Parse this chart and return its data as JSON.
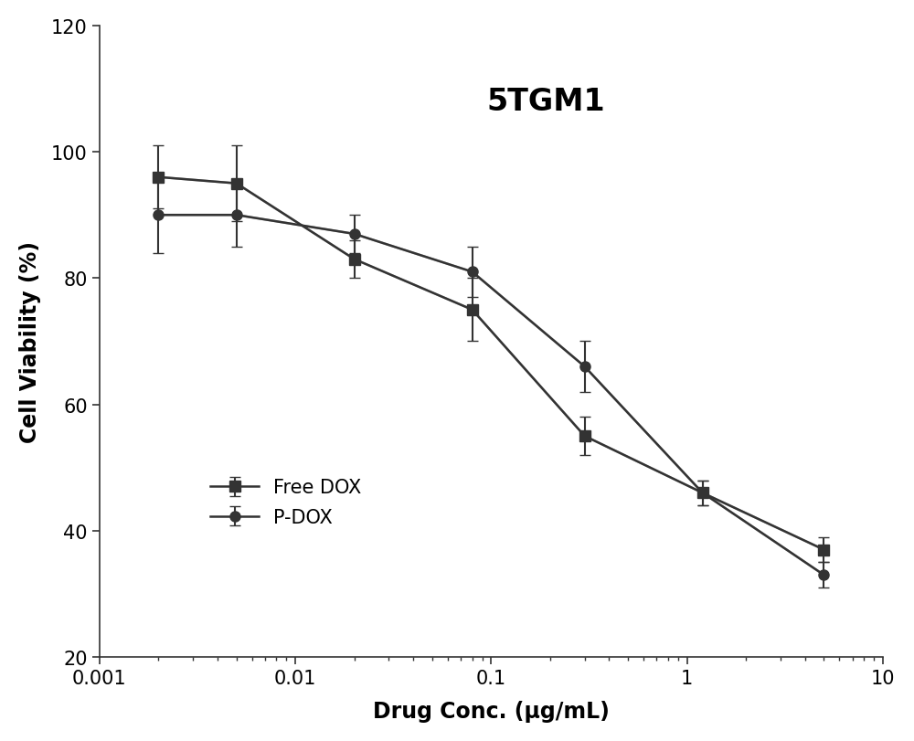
{
  "title": "5TGM1",
  "xlabel": "Drug Conc. (μg/mL)",
  "ylabel": "Cell Viability (%)",
  "xlim": [
    0.001,
    10
  ],
  "ylim": [
    20,
    120
  ],
  "yticks": [
    20,
    40,
    60,
    80,
    100,
    120
  ],
  "xticks": [
    0.001,
    0.01,
    0.1,
    1,
    10
  ],
  "free_dox_x": [
    0.002,
    0.005,
    0.02,
    0.08,
    0.3,
    1.2,
    5.0
  ],
  "free_dox_y": [
    96,
    95,
    83,
    75,
    55,
    46,
    37
  ],
  "free_dox_yerr": [
    5,
    6,
    3,
    5,
    3,
    2,
    2
  ],
  "pdox_x": [
    0.002,
    0.005,
    0.02,
    0.08,
    0.3,
    1.2,
    5.0
  ],
  "pdox_y": [
    90,
    90,
    87,
    81,
    66,
    46,
    33
  ],
  "pdox_yerr": [
    6,
    5,
    3,
    4,
    4,
    2,
    2
  ],
  "marker_color": "#333333",
  "line_color": "#aaaaaa",
  "marker_free_dox": "s",
  "marker_pdox": "o",
  "marker_size": 8,
  "line_width": 1.8,
  "background_color": "#ffffff",
  "title_fontsize": 24,
  "label_fontsize": 17,
  "tick_fontsize": 15,
  "legend_fontsize": 15,
  "capsize": 4,
  "elinewidth": 1.5
}
